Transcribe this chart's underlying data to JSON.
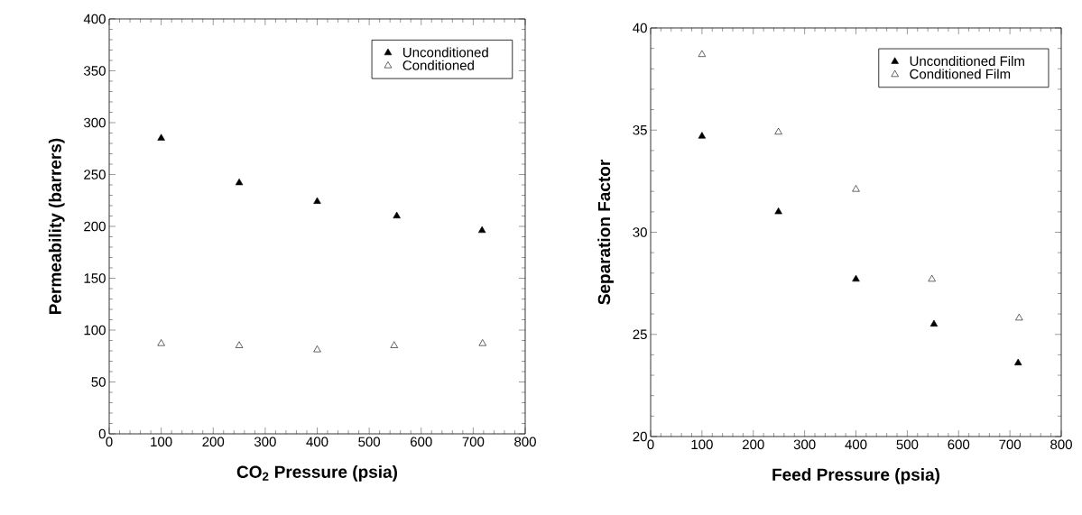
{
  "chart_data": [
    {
      "type": "scatter",
      "xlabel": "CO$_{2}$ Pressure (psia)",
      "ylabel": "Permeability (barrers)",
      "xlim": [
        0,
        800
      ],
      "ylim": [
        0,
        400
      ],
      "xticks": [
        0,
        100,
        200,
        300,
        400,
        500,
        600,
        700,
        800
      ],
      "yticks": [
        0,
        50,
        100,
        150,
        200,
        250,
        300,
        350,
        400
      ],
      "grid": false,
      "legend": "top right",
      "marker": "triangle",
      "series": [
        {
          "name": "Unconditioned",
          "color": "#000000",
          "x": [
            100,
            250,
            400,
            553,
            717
          ],
          "values": [
            285,
            242,
            224,
            210,
            196
          ]
        },
        {
          "name": "Conditioned",
          "color": "#ffffff",
          "x": [
            100,
            250,
            400,
            548,
            718
          ],
          "values": [
            87,
            85,
            81,
            85,
            87
          ]
        }
      ]
    },
    {
      "type": "scatter",
      "xlabel": "Feed Pressure (psia)",
      "ylabel": "Separation Factor",
      "xlim": [
        0,
        800
      ],
      "ylim": [
        20,
        40
      ],
      "xticks": [
        0,
        100,
        200,
        300,
        400,
        500,
        600,
        700,
        800
      ],
      "yticks": [
        20,
        25,
        30,
        35,
        40
      ],
      "grid": false,
      "legend": "top right",
      "marker": "triangle",
      "series": [
        {
          "name": "Unconditioned Film",
          "color": "#000000",
          "x": [
            100,
            249,
            400,
            552,
            716
          ],
          "values": [
            34.7,
            31.0,
            27.7,
            25.5,
            23.6
          ]
        },
        {
          "name": "Conditioned Film",
          "color": "#ffffff",
          "x": [
            100,
            249,
            400,
            548,
            718
          ],
          "values": [
            38.7,
            34.9,
            32.1,
            27.7,
            25.8
          ]
        }
      ]
    }
  ]
}
